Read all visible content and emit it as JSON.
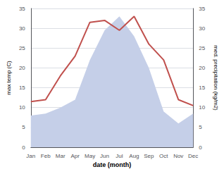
{
  "chart_data": {
    "type": "line",
    "xlabel": "date (month)",
    "ylabel": "max temp (C)",
    "y2label": "med. precipitation (kg/m2)",
    "categories": [
      "Jan",
      "Feb",
      "Mar",
      "Apr",
      "May",
      "Jun",
      "Jul",
      "Aug",
      "Sep",
      "Oct",
      "Nov",
      "Dec"
    ],
    "series": [
      {
        "type": "area",
        "axis": "y2",
        "color": "#c5cfe8",
        "values": [
          8.0,
          8.5,
          10.0,
          12.0,
          22.0,
          29.5,
          33.0,
          28.0,
          20.0,
          9.0,
          6.0,
          8.5
        ]
      },
      {
        "type": "line",
        "axis": "y",
        "color": "#c0504d",
        "values": [
          11.5,
          12.0,
          18.0,
          23.0,
          31.5,
          32.0,
          29.5,
          33.0,
          26.0,
          22.0,
          12.0,
          10.5
        ]
      }
    ],
    "ylim": [
      0,
      35
    ],
    "yticks": [
      0,
      5,
      10,
      15,
      20,
      25,
      30,
      35
    ],
    "y2lim": [
      0,
      35
    ],
    "y2ticks": [
      0,
      5,
      10,
      15,
      20,
      25,
      30,
      35
    ],
    "grid": true
  }
}
